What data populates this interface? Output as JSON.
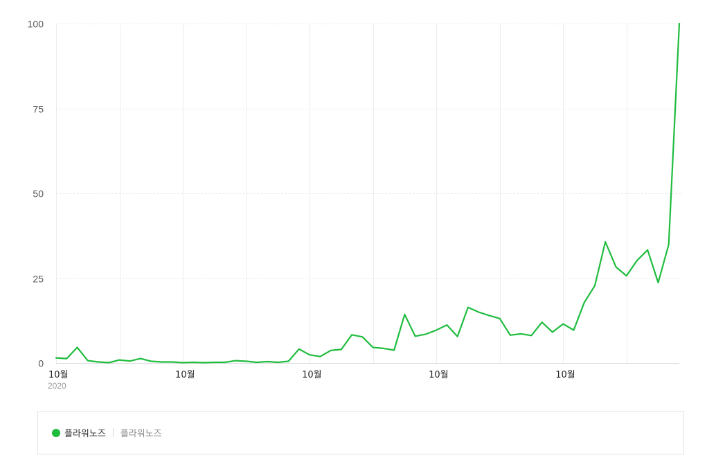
{
  "colors": {
    "series": "#1fbc3e",
    "grid": "#ececec",
    "axis": "#dddddd"
  },
  "chart_data": {
    "type": "line",
    "title": "",
    "xlabel": "",
    "ylabel": "",
    "ylim": [
      0,
      100
    ],
    "yticks": [
      "0",
      "25",
      "50",
      "75",
      "100"
    ],
    "ytick_values": [
      0,
      25,
      50,
      75,
      100
    ],
    "xtick_labels": [
      {
        "label": "10월",
        "sub": "2020",
        "index": 0
      },
      {
        "label": "10월",
        "sub": "",
        "index": 12
      },
      {
        "label": "10월",
        "sub": "",
        "index": 24
      },
      {
        "label": "10월",
        "sub": "",
        "index": 36
      },
      {
        "label": "10월",
        "sub": "",
        "index": 48
      }
    ],
    "vgrid_every": 6,
    "grid": true,
    "legend_position": "bottom",
    "series": [
      {
        "name": "플라워노즈",
        "values": [
          1.5,
          1.3,
          4.6,
          0.7,
          0.3,
          0.1,
          0.9,
          0.6,
          1.3,
          0.5,
          0.3,
          0.3,
          0.1,
          0.2,
          0.1,
          0.2,
          0.2,
          0.7,
          0.5,
          0.2,
          0.4,
          0.2,
          0.5,
          4.1,
          2.4,
          1.9,
          3.7,
          4.0,
          8.3,
          7.7,
          4.6,
          4.3,
          3.8,
          14.3,
          7.9,
          8.5,
          9.7,
          11.2,
          7.8,
          16.4,
          15.0,
          14.0,
          13.1,
          8.2,
          8.6,
          8.1,
          12.0,
          9.1,
          11.5,
          9.7,
          17.8,
          22.8,
          35.7,
          28.3,
          25.7,
          30.2,
          33.3,
          23.7,
          34.9,
          100
        ]
      }
    ]
  },
  "legend": {
    "series_label": "플라워노즈",
    "sub_label": "플라워노즈"
  }
}
